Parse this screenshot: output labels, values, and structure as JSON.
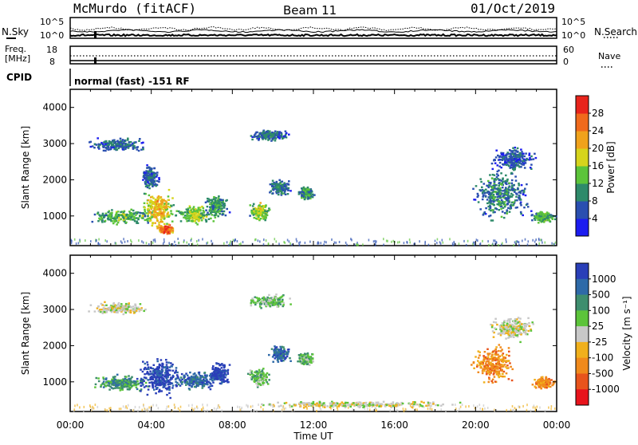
{
  "header": {
    "station": "McMurdo (fitACF)",
    "beam": "Beam 11",
    "date": "01/Oct/2019"
  },
  "summary_panel": {
    "left_top_label": "N.Sky",
    "right_top_label": "N.Search",
    "left_mid_label1": "Freq.",
    "left_mid_label2": "[MHz]",
    "right_mid_label": "Nave",
    "cpid_label": "CPID",
    "nsky_ticks": [
      "10^5",
      "10^0"
    ],
    "nsearch_ticks": [
      "10^5",
      "10^0"
    ],
    "freq_ticks": [
      "18",
      "8"
    ],
    "nave_ticks": [
      "60",
      "0"
    ],
    "mode_text": "normal (fast) -151 RF"
  },
  "x_axis": {
    "label": "Time UT",
    "ticks": [
      "00:00",
      "04:00",
      "08:00",
      "12:00",
      "16:00",
      "20:00",
      "00:00"
    ]
  },
  "colors": {
    "power": [
      "#1c1cf0",
      "#2a4fb0",
      "#2e8a6a",
      "#5cc43a",
      "#d6d41c",
      "#f0a21c",
      "#f06a1c",
      "#e8241c"
    ],
    "velocity": [
      "#2a3fb8",
      "#2e6aa8",
      "#3e8e6e",
      "#5cc43a",
      "#c8c8c8",
      "#f0b01c",
      "#f08a1c",
      "#e8541c",
      "#e8141c"
    ]
  },
  "chart_data": [
    {
      "type": "heatmap",
      "title": "Power",
      "ylabel": "Slant Range [km]",
      "xlabel": "",
      "ylim": [
        180,
        4500
      ],
      "xlim": [
        0,
        24
      ],
      "yticks": [
        1000,
        2000,
        3000,
        4000
      ],
      "colorbar": {
        "label": "Power [dB]",
        "range": [
          0,
          32
        ],
        "ticks": [
          "4",
          "8",
          "12",
          "16",
          "20",
          "24",
          "28"
        ]
      },
      "blobs": [
        {
          "t": 2.5,
          "r": 1000,
          "dt": 1.7,
          "dr": 250,
          "v": 14
        },
        {
          "t": 4.3,
          "r": 1200,
          "dt": 1.0,
          "dr": 600,
          "v": 22
        },
        {
          "t": 4.7,
          "r": 650,
          "dt": 0.5,
          "dr": 150,
          "v": 30
        },
        {
          "t": 6.2,
          "r": 1050,
          "dt": 1.2,
          "dr": 300,
          "v": 16
        },
        {
          "t": 7.2,
          "r": 1300,
          "dt": 0.7,
          "dr": 400,
          "v": 12
        },
        {
          "t": 9.3,
          "r": 1150,
          "dt": 0.6,
          "dr": 300,
          "v": 18
        },
        {
          "t": 10.3,
          "r": 1800,
          "dt": 0.6,
          "dr": 250,
          "v": 10
        },
        {
          "t": 11.6,
          "r": 1650,
          "dt": 0.5,
          "dr": 200,
          "v": 12
        },
        {
          "t": 2.3,
          "r": 3000,
          "dt": 1.8,
          "dr": 200,
          "v": 8
        },
        {
          "t": 9.8,
          "r": 3250,
          "dt": 1.2,
          "dr": 200,
          "v": 9
        },
        {
          "t": 21.2,
          "r": 1600,
          "dt": 1.6,
          "dr": 800,
          "v": 10
        },
        {
          "t": 21.8,
          "r": 2600,
          "dt": 1.3,
          "dr": 400,
          "v": 7
        },
        {
          "t": 23.3,
          "r": 1000,
          "dt": 0.7,
          "dr": 200,
          "v": 14
        },
        {
          "t": 3.9,
          "r": 2100,
          "dt": 0.5,
          "dr": 400,
          "v": 8
        }
      ]
    },
    {
      "type": "heatmap",
      "title": "Velocity",
      "ylabel": "Slant Range [km]",
      "xlabel": "Time UT",
      "ylim": [
        180,
        4500
      ],
      "xlim": [
        0,
        24
      ],
      "yticks": [
        1000,
        2000,
        3000,
        4000
      ],
      "colorbar": {
        "label": "Velocity [m s⁻¹]",
        "ticks": [
          "1000",
          "500",
          "100",
          "25",
          "-25",
          "-100",
          "-500",
          "-1000"
        ]
      },
      "blobs": [
        {
          "t": 2.5,
          "r": 1000,
          "dt": 1.7,
          "dr": 250,
          "v": 2
        },
        {
          "t": 4.4,
          "r": 1150,
          "dt": 1.3,
          "dr": 650,
          "v": 0
        },
        {
          "t": 6.2,
          "r": 1050,
          "dt": 1.3,
          "dr": 300,
          "v": 1
        },
        {
          "t": 7.3,
          "r": 1250,
          "dt": 0.7,
          "dr": 400,
          "v": 0
        },
        {
          "t": 9.3,
          "r": 1150,
          "dt": 0.6,
          "dr": 300,
          "v": 3
        },
        {
          "t": 10.3,
          "r": 1800,
          "dt": 0.6,
          "dr": 250,
          "v": 1
        },
        {
          "t": 11.6,
          "r": 1650,
          "dt": 0.5,
          "dr": 200,
          "v": 3
        },
        {
          "t": 2.3,
          "r": 3050,
          "dt": 1.8,
          "dr": 200,
          "v": 4
        },
        {
          "t": 9.8,
          "r": 3250,
          "dt": 1.2,
          "dr": 200,
          "v": 3
        },
        {
          "t": 20.9,
          "r": 1500,
          "dt": 1.3,
          "dr": 600,
          "v": 6
        },
        {
          "t": 21.8,
          "r": 2500,
          "dt": 1.3,
          "dr": 400,
          "v": 4
        },
        {
          "t": 23.3,
          "r": 1000,
          "dt": 0.7,
          "dr": 200,
          "v": 6
        },
        {
          "t": 14.0,
          "r": 400,
          "dt": 6.0,
          "dr": 120,
          "v": 4
        }
      ]
    }
  ]
}
